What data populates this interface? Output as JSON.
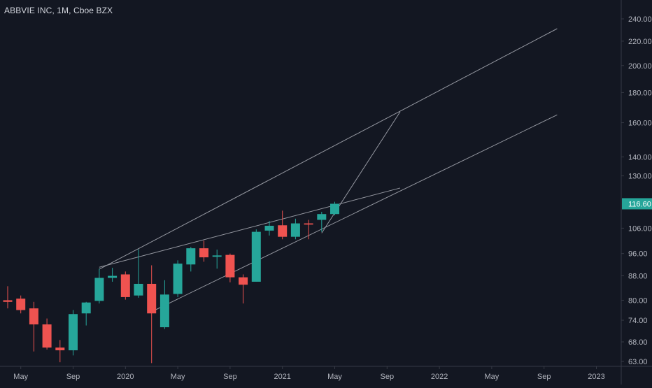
{
  "title": "ABBVIE INC, 1M, Cboe BZX",
  "colors": {
    "background": "#131722",
    "up": "#26a69a",
    "down": "#ef5350",
    "axis_text": "#b2b5be",
    "axis_line": "#363a45",
    "drawing": "#9598a1",
    "price_badge": "#26a69a"
  },
  "current_price": {
    "value": 116.6,
    "label": "116.60"
  },
  "chart_data": {
    "type": "candlestick",
    "title": "ABBVIE INC, 1M, Cboe BZX",
    "y_scale": "log",
    "ylim": [
      61,
      256
    ],
    "y_ticks": [
      {
        "value": 63,
        "label": "63.00"
      },
      {
        "value": 68,
        "label": "68.00"
      },
      {
        "value": 74,
        "label": "74.00"
      },
      {
        "value": 80,
        "label": "80.00"
      },
      {
        "value": 88,
        "label": "88.00"
      },
      {
        "value": 96,
        "label": "96.00"
      },
      {
        "value": 106,
        "label": "106.00"
      },
      {
        "value": 130,
        "label": "130.00"
      },
      {
        "value": 140,
        "label": "140.00"
      },
      {
        "value": 160,
        "label": "160.00"
      },
      {
        "value": 180,
        "label": "180.00"
      },
      {
        "value": 200,
        "label": "200.00"
      },
      {
        "value": 220,
        "label": "220.00"
      },
      {
        "value": 240,
        "label": "240.00"
      }
    ],
    "x_ticks": [
      {
        "date": "2019-05",
        "label": "May"
      },
      {
        "date": "2019-09",
        "label": "Sep"
      },
      {
        "date": "2020-01",
        "label": "2020"
      },
      {
        "date": "2020-05",
        "label": "May"
      },
      {
        "date": "2020-09",
        "label": "Sep"
      },
      {
        "date": "2021-01",
        "label": "2021"
      },
      {
        "date": "2021-05",
        "label": "May"
      },
      {
        "date": "2021-09",
        "label": "Sep"
      },
      {
        "date": "2022-01",
        "label": "2022"
      },
      {
        "date": "2022-05",
        "label": "May"
      },
      {
        "date": "2022-09",
        "label": "Sep"
      },
      {
        "date": "2023-01",
        "label": "2023"
      }
    ],
    "candles": [
      {
        "date": "2019-04",
        "open": 80.0,
        "high": 84.5,
        "low": 77.5,
        "close": 79.5
      },
      {
        "date": "2019-05",
        "open": 80.5,
        "high": 81.5,
        "low": 76.0,
        "close": 77.0
      },
      {
        "date": "2019-06",
        "open": 77.5,
        "high": 79.5,
        "low": 65.5,
        "close": 72.8
      },
      {
        "date": "2019-07",
        "open": 72.8,
        "high": 74.5,
        "low": 66.0,
        "close": 66.5
      },
      {
        "date": "2019-08",
        "open": 66.5,
        "high": 68.5,
        "low": 62.8,
        "close": 65.8
      },
      {
        "date": "2019-09",
        "open": 65.8,
        "high": 77.0,
        "low": 64.5,
        "close": 75.8
      },
      {
        "date": "2019-10",
        "open": 76.0,
        "high": 79.5,
        "low": 72.5,
        "close": 79.3
      },
      {
        "date": "2019-11",
        "open": 79.8,
        "high": 90.5,
        "low": 79.0,
        "close": 87.3
      },
      {
        "date": "2019-12",
        "open": 87.3,
        "high": 90.8,
        "low": 86.0,
        "close": 88.0
      },
      {
        "date": "2020-01",
        "open": 88.5,
        "high": 89.5,
        "low": 80.2,
        "close": 81.0
      },
      {
        "date": "2020-02",
        "open": 81.5,
        "high": 97.6,
        "low": 80.8,
        "close": 85.3
      },
      {
        "date": "2020-03",
        "open": 85.3,
        "high": 91.7,
        "low": 62.6,
        "close": 76.0
      },
      {
        "date": "2020-04",
        "open": 72.0,
        "high": 86.5,
        "low": 71.5,
        "close": 81.8
      },
      {
        "date": "2020-05",
        "open": 82.0,
        "high": 93.5,
        "low": 81.0,
        "close": 92.3
      },
      {
        "date": "2020-06",
        "open": 92.0,
        "high": 98.5,
        "low": 89.5,
        "close": 98.0
      },
      {
        "date": "2020-07",
        "open": 98.0,
        "high": 101.0,
        "low": 93.0,
        "close": 94.6
      },
      {
        "date": "2020-08",
        "open": 94.8,
        "high": 97.5,
        "low": 90.5,
        "close": 95.3
      },
      {
        "date": "2020-09",
        "open": 95.5,
        "high": 96.0,
        "low": 85.8,
        "close": 87.5
      },
      {
        "date": "2020-10",
        "open": 87.5,
        "high": 88.5,
        "low": 79.0,
        "close": 85.0
      },
      {
        "date": "2020-11",
        "open": 86.0,
        "high": 105.5,
        "low": 86.0,
        "close": 104.5
      },
      {
        "date": "2020-12",
        "open": 105.0,
        "high": 109.0,
        "low": 103.0,
        "close": 107.0
      },
      {
        "date": "2021-01",
        "open": 107.2,
        "high": 113.5,
        "low": 101.5,
        "close": 102.5
      },
      {
        "date": "2021-02",
        "open": 102.5,
        "high": 110.0,
        "low": 101.5,
        "close": 108.0
      },
      {
        "date": "2021-03",
        "open": 108.0,
        "high": 109.5,
        "low": 101.5,
        "close": 107.5
      },
      {
        "date": "2021-04",
        "open": 109.5,
        "high": 113.0,
        "low": 104.5,
        "close": 112.0
      },
      {
        "date": "2021-05",
        "open": 112.0,
        "high": 117.5,
        "low": 111.5,
        "close": 116.6
      }
    ],
    "trendlines": [
      {
        "start": {
          "date": "2019-11",
          "value": 90.3
        },
        "end": {
          "date": "2022-10",
          "value": 231
        }
      },
      {
        "start": {
          "date": "2020-03",
          "value": 76.5
        },
        "end": {
          "date": "2022-10",
          "value": 165
        }
      },
      {
        "start": {
          "date": "2019-11",
          "value": 91.0
        },
        "end": {
          "date": "2021-10",
          "value": 124
        }
      },
      {
        "start": {
          "date": "2021-04",
          "value": 104.0
        },
        "end": {
          "date": "2021-10",
          "value": 167
        }
      }
    ]
  }
}
